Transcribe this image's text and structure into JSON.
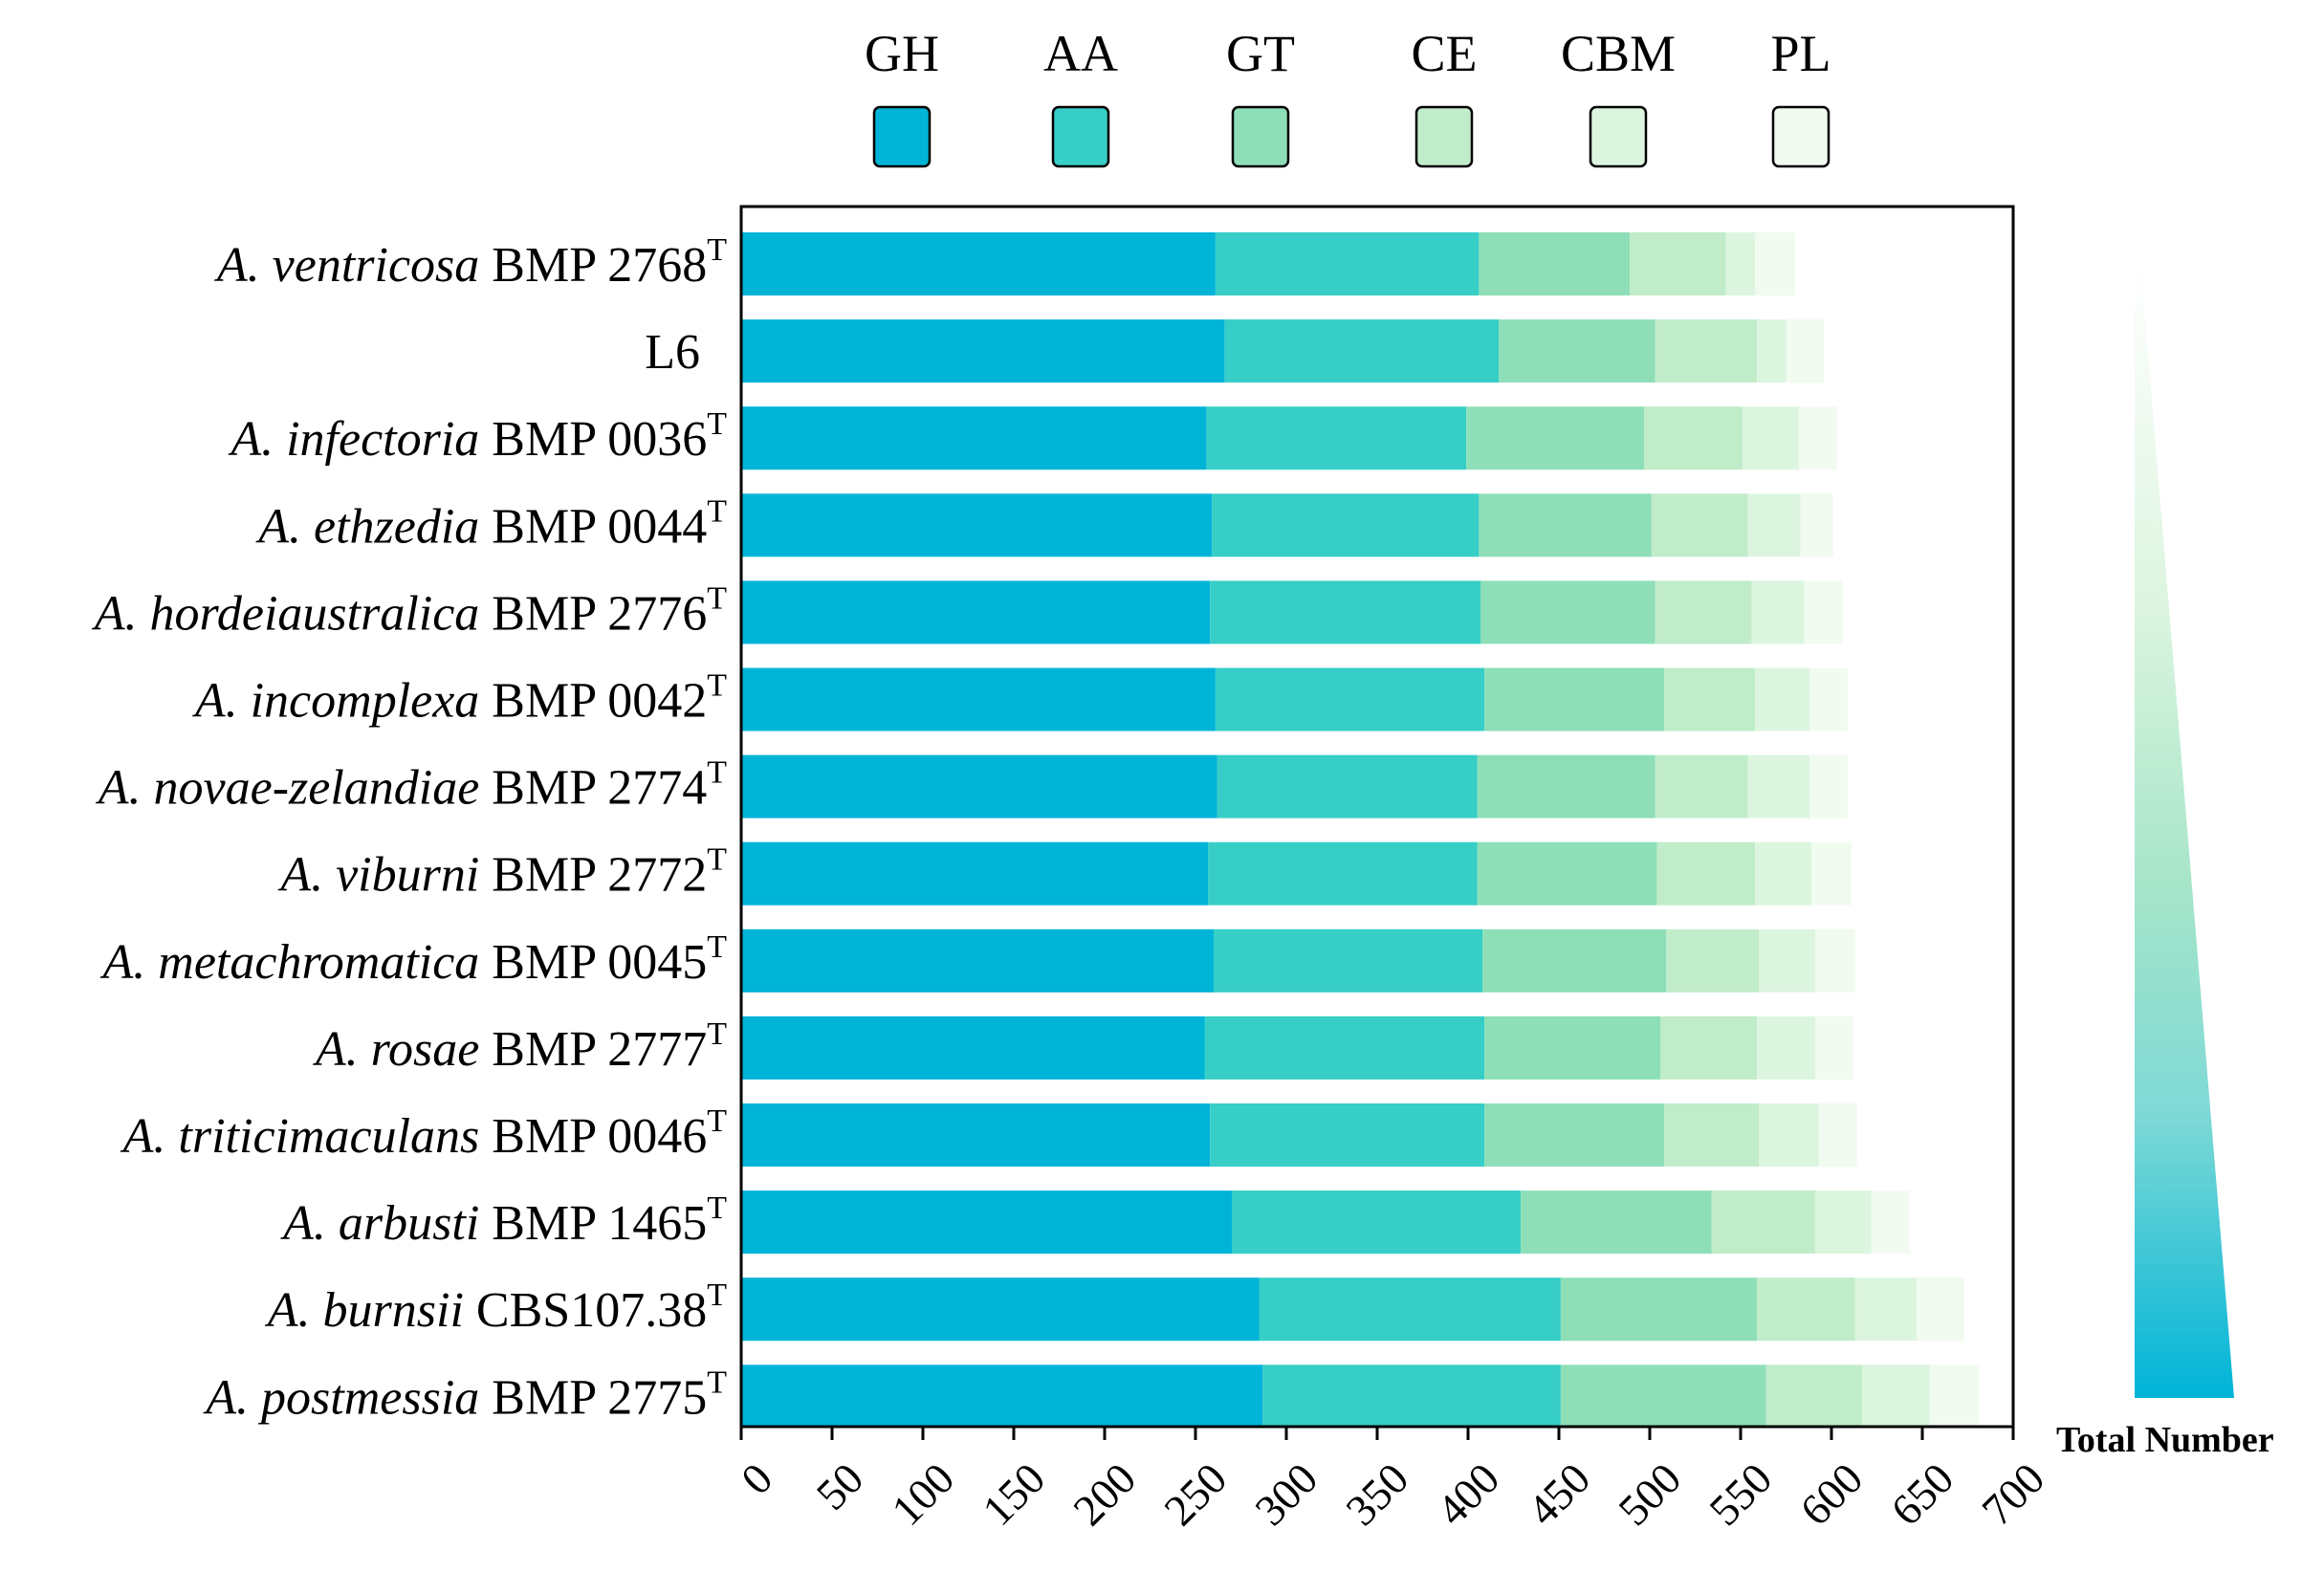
{
  "chart_data": {
    "type": "bar",
    "orientation": "horizontal",
    "stacked": true,
    "title": "",
    "xlabel": "",
    "ylabel": "",
    "xlim": [
      0,
      700
    ],
    "xticks": [
      "0",
      "50",
      "100",
      "150",
      "200",
      "250",
      "300",
      "350",
      "400",
      "450",
      "500",
      "550",
      "600",
      "650",
      "700"
    ],
    "categories": [
      {
        "italic": "A. ventricosa",
        "rest": " BMP 2768",
        "sup": "T"
      },
      {
        "italic": "",
        "rest": "L6",
        "sup": ""
      },
      {
        "italic": "A. infectoria",
        "rest": " BMP 0036",
        "sup": "T"
      },
      {
        "italic": "A. ethzedia",
        "rest": " BMP 0044",
        "sup": "T"
      },
      {
        "italic": "A. hordeiaustralica",
        "rest": " BMP 2776",
        "sup": "T"
      },
      {
        "italic": "A. incomplexa",
        "rest": " BMP 0042",
        "sup": "T"
      },
      {
        "italic": "A. novae-zelandiae",
        "rest": " BMP 2774",
        "sup": "T"
      },
      {
        "italic": "A. viburni",
        "rest": " BMP 2772",
        "sup": "T"
      },
      {
        "italic": "A. metachromatica",
        "rest": " BMP 0045",
        "sup": "T"
      },
      {
        "italic": "A. rosae",
        "rest": " BMP 2777",
        "sup": "T"
      },
      {
        "italic": "A. triticimaculans",
        "rest": " BMP 0046",
        "sup": "T"
      },
      {
        "italic": "A. arbusti",
        "rest": " BMP 1465",
        "sup": "T"
      },
      {
        "italic": "A. burnsii",
        "rest": " CBS107.38",
        "sup": "T"
      },
      {
        "italic": "A. postmessia",
        "rest": " BMP 2775",
        "sup": "T"
      }
    ],
    "series": [
      {
        "name": "GH",
        "color": "#00b4d8",
        "values": [
          261,
          266,
          256,
          259,
          258,
          261,
          262,
          257,
          260,
          255,
          258,
          270,
          285,
          287
        ]
      },
      {
        "name": "AA",
        "color": "#36cec6",
        "values": [
          145,
          151,
          143,
          147,
          149,
          148,
          143,
          148,
          148,
          154,
          151,
          159,
          166,
          164
        ]
      },
      {
        "name": "GT",
        "color": "#8edfb8",
        "values": [
          83,
          86,
          98,
          95,
          96,
          99,
          98,
          99,
          101,
          97,
          99,
          105,
          108,
          113
        ]
      },
      {
        "name": "CE",
        "color": "#c1ecca",
        "values": [
          53,
          56,
          54,
          53,
          53,
          50,
          51,
          54,
          51,
          53,
          52,
          57,
          54,
          53
        ]
      },
      {
        "name": "CBM",
        "color": "#dcf5df",
        "values": [
          16,
          16,
          31,
          29,
          29,
          30,
          34,
          31,
          31,
          32,
          33,
          31,
          34,
          37
        ]
      },
      {
        "name": "PL",
        "color": "#f1fbef",
        "values": [
          22,
          21,
          21,
          18,
          21,
          21,
          21,
          22,
          22,
          21,
          21,
          21,
          26,
          27
        ]
      }
    ],
    "legend": {
      "position": "top",
      "order": [
        "GH",
        "AA",
        "GT",
        "CE",
        "CBM",
        "PL"
      ]
    },
    "colorbar": {
      "label": "Total Number",
      "position": "right",
      "colors": [
        "#f1fbef",
        "#c1ecca",
        "#8edfb8",
        "#36cec6",
        "#00b4d8"
      ]
    }
  }
}
